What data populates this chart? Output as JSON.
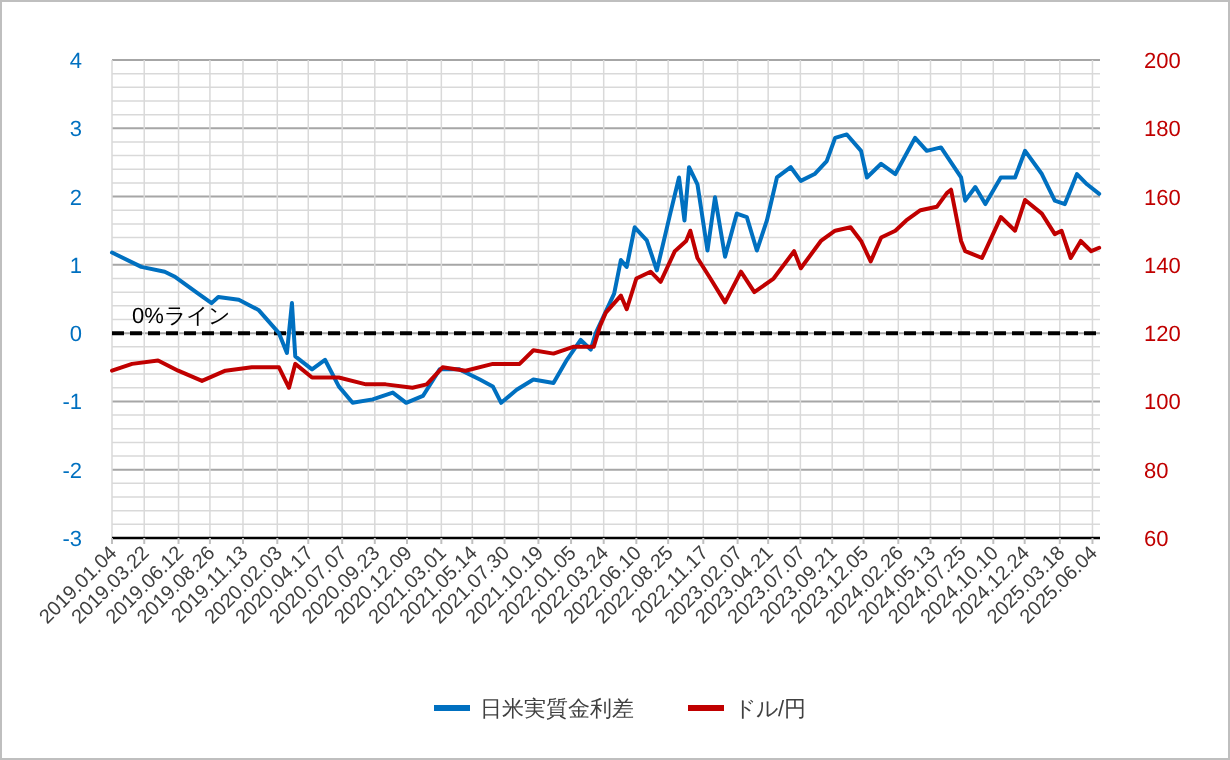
{
  "chart_data": {
    "type": "line",
    "legend": "bottom",
    "grid": true,
    "xlim": [
      "2019-01-04",
      "2025-06-22"
    ],
    "xticks": [
      {
        "value": "2019-01-04",
        "label": "2019.01.04"
      },
      {
        "value": "2019-03-22",
        "label": "2019.03.22"
      },
      {
        "value": "2019-06-12",
        "label": "2019.06.12"
      },
      {
        "value": "2019-08-26",
        "label": "2019.08.26"
      },
      {
        "value": "2019-11-13",
        "label": "2019.11.13"
      },
      {
        "value": "2020-02-03",
        "label": "2020.02.03"
      },
      {
        "value": "2020-04-17",
        "label": "2020.04.17"
      },
      {
        "value": "2020-07-07",
        "label": "2020.07.07"
      },
      {
        "value": "2020-09-23",
        "label": "2020.09.23"
      },
      {
        "value": "2020-12-09",
        "label": "2020.12.09"
      },
      {
        "value": "2021-03-01",
        "label": "2021.03.01"
      },
      {
        "value": "2021-05-14",
        "label": "2021.05.14"
      },
      {
        "value": "2021-07-30",
        "label": "2021.07.30"
      },
      {
        "value": "2021-10-19",
        "label": "2021.10.19"
      },
      {
        "value": "2022-01-05",
        "label": "2022.01.05"
      },
      {
        "value": "2022-03-24",
        "label": "2022.03.24"
      },
      {
        "value": "2022-06-10",
        "label": "2022.06.10"
      },
      {
        "value": "2022-08-25",
        "label": "2022.08.25"
      },
      {
        "value": "2022-11-17",
        "label": "2022.11.17"
      },
      {
        "value": "2023-02-07",
        "label": "2023.02.07"
      },
      {
        "value": "2023-04-21",
        "label": "2023.04.21"
      },
      {
        "value": "2023-07-07",
        "label": "2023.07.07"
      },
      {
        "value": "2023-09-21",
        "label": "2023.09.21"
      },
      {
        "value": "2023-12-05",
        "label": "2023.12.05"
      },
      {
        "value": "2024-02-26",
        "label": "2024.02.26"
      },
      {
        "value": "2024-05-13",
        "label": "2024.05.13"
      },
      {
        "value": "2024-07-25",
        "label": "2024.07.25"
      },
      {
        "value": "2024-10-10",
        "label": "2024.10.10"
      },
      {
        "value": "2024-12-24",
        "label": "2024.12.24"
      },
      {
        "value": "2025-03-18",
        "label": "2025.03.18"
      },
      {
        "value": "2025-06-04",
        "label": "2025.06.04"
      }
    ],
    "ylim": [
      -3,
      4
    ],
    "yticks": [
      -3,
      -2,
      -1,
      0,
      1,
      2,
      3,
      4
    ],
    "y2lim": [
      60,
      200
    ],
    "y2ticks": [
      60,
      80,
      100,
      120,
      140,
      160,
      180,
      200
    ],
    "ref_lines": [
      {
        "axis": "y",
        "value": 0,
        "label": "0%ライン",
        "color": "#000000",
        "line_style": "dashed"
      }
    ],
    "series": [
      {
        "name": "日米実質金利差",
        "color": "#0070c0",
        "x": [
          "2019-01-04",
          "2019-03-15",
          "2019-05-10",
          "2019-06-02",
          "2019-07-29",
          "2019-08-30",
          "2019-09-15",
          "2019-11-03",
          "2019-12-20",
          "2020-02-07",
          "2020-02-26",
          "2020-03-09",
          "2020-03-17",
          "2020-04-26",
          "2020-05-27",
          "2020-06-29",
          "2020-08-01",
          "2020-09-18",
          "2020-11-05",
          "2020-12-07",
          "2021-01-16",
          "2021-02-25",
          "2021-04-13",
          "2021-06-01",
          "2021-07-02",
          "2021-07-22",
          "2021-08-28",
          "2021-10-07",
          "2021-11-24",
          "2021-12-26",
          "2022-01-28",
          "2022-02-21",
          "2022-03-05",
          "2022-04-18",
          "2022-05-04",
          "2022-05-18",
          "2022-06-06",
          "2022-07-05",
          "2022-07-29",
          "2022-08-30",
          "2022-09-20",
          "2022-10-03",
          "2022-10-14",
          "2022-11-03",
          "2022-11-27",
          "2022-12-15",
          "2023-01-08",
          "2023-02-05",
          "2023-03-01",
          "2023-03-25",
          "2023-04-18",
          "2023-05-12",
          "2023-06-14",
          "2023-07-08",
          "2023-08-10",
          "2023-09-08",
          "2023-09-28",
          "2023-10-26",
          "2023-11-29",
          "2023-12-13",
          "2024-01-16",
          "2024-02-19",
          "2024-04-06",
          "2024-05-04",
          "2024-06-07",
          "2024-07-25",
          "2024-08-04",
          "2024-08-28",
          "2024-09-21",
          "2024-10-28",
          "2024-12-01",
          "2024-12-25",
          "2025-02-03",
          "2025-03-06",
          "2025-03-30",
          "2025-04-28",
          "2025-05-22",
          "2025-06-20"
        ],
        "values": [
          1.18,
          0.97,
          0.9,
          0.83,
          0.58,
          0.44,
          0.53,
          0.49,
          0.34,
          0.0,
          -0.29,
          0.44,
          -0.34,
          -0.53,
          -0.39,
          -0.78,
          -1.02,
          -0.97,
          -0.87,
          -1.02,
          -0.92,
          -0.53,
          -0.53,
          -0.68,
          -0.78,
          -1.02,
          -0.83,
          -0.68,
          -0.73,
          -0.39,
          -0.1,
          -0.24,
          0.0,
          0.58,
          1.07,
          0.97,
          1.55,
          1.36,
          0.92,
          1.75,
          2.28,
          1.65,
          2.43,
          2.18,
          1.21,
          1.99,
          1.12,
          1.75,
          1.7,
          1.21,
          1.65,
          2.28,
          2.43,
          2.23,
          2.33,
          2.52,
          2.86,
          2.91,
          2.67,
          2.28,
          2.48,
          2.33,
          2.86,
          2.67,
          2.72,
          2.28,
          1.94,
          2.14,
          1.89,
          2.28,
          2.28,
          2.67,
          2.33,
          1.94,
          1.89,
          2.33,
          2.18,
          2.04
        ]
      },
      {
        "name": "ドル/円",
        "color": "#c00000",
        "axis": "y2",
        "x": [
          "2019-01-04",
          "2019-02-21",
          "2019-04-24",
          "2019-06-11",
          "2019-08-07",
          "2019-10-02",
          "2019-12-04",
          "2020-02-07",
          "2020-03-02",
          "2020-03-17",
          "2020-04-26",
          "2020-06-29",
          "2020-09-02",
          "2020-10-19",
          "2020-12-22",
          "2021-01-25",
          "2021-03-04",
          "2021-04-28",
          "2021-07-02",
          "2021-09-04",
          "2021-10-07",
          "2021-11-24",
          "2022-01-10",
          "2022-02-28",
          "2022-03-15",
          "2022-03-29",
          "2022-05-04",
          "2022-05-18",
          "2022-06-10",
          "2022-07-14",
          "2022-08-07",
          "2022-09-10",
          "2022-10-07",
          "2022-10-17",
          "2022-11-03",
          "2022-12-04",
          "2023-01-08",
          "2023-02-15",
          "2023-03-19",
          "2023-05-04",
          "2023-06-22",
          "2023-07-08",
          "2023-08-25",
          "2023-09-28",
          "2023-11-04",
          "2023-11-29",
          "2023-12-22",
          "2024-01-16",
          "2024-02-19",
          "2024-03-16",
          "2024-04-19",
          "2024-05-28",
          "2024-06-21",
          "2024-07-01",
          "2024-07-25",
          "2024-08-04",
          "2024-09-13",
          "2024-10-28",
          "2024-12-01",
          "2024-12-25",
          "2025-02-03",
          "2025-03-06",
          "2025-03-22",
          "2025-04-13",
          "2025-05-07",
          "2025-06-01",
          "2025-06-20"
        ],
        "values": [
          109,
          111,
          112,
          109,
          106,
          109,
          110,
          110,
          104,
          111,
          107,
          107,
          105,
          105,
          104,
          105,
          110,
          109,
          111,
          111,
          115,
          114,
          116,
          116,
          122,
          126,
          131,
          127,
          136,
          138,
          135,
          144,
          147,
          150,
          142,
          136,
          129,
          138,
          132,
          136,
          144,
          139,
          147,
          150,
          151,
          147,
          141,
          148,
          150,
          153,
          156,
          157,
          161,
          162,
          147,
          144,
          142,
          154,
          150,
          159,
          155,
          149,
          150,
          142,
          147,
          144,
          145
        ]
      }
    ]
  }
}
